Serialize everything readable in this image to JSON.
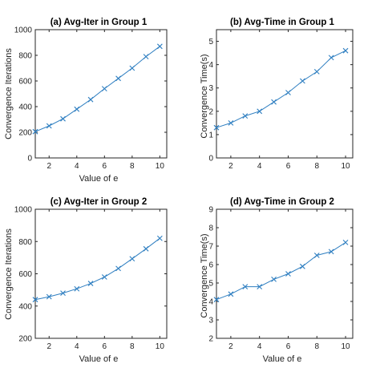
{
  "chart_data": [
    {
      "type": "line",
      "title": "(a) Avg-Iter in Group 1",
      "xlabel": "Value of e",
      "ylabel": "Convergence Iterations",
      "x": [
        1,
        2,
        3,
        4,
        5,
        6,
        7,
        8,
        9,
        10
      ],
      "series": [
        {
          "values": [
            205,
            250,
            305,
            380,
            455,
            540,
            620,
            700,
            790,
            870
          ]
        }
      ],
      "xlim": [
        1,
        10.5
      ],
      "ylim": [
        0,
        1000
      ],
      "xticks": [
        2,
        4,
        6,
        8,
        10
      ],
      "yticks": [
        0,
        200,
        400,
        600,
        800,
        1000
      ],
      "line_color": "#2f7fc1",
      "marker": "x",
      "grid": false
    },
    {
      "type": "line",
      "title": "(b) Avg-Time in Group 1",
      "xlabel": "",
      "ylabel": "Convergence Time(s)",
      "x": [
        1,
        2,
        3,
        4,
        5,
        6,
        7,
        8,
        9,
        10
      ],
      "series": [
        {
          "values": [
            1.3,
            1.5,
            1.8,
            2.0,
            2.4,
            2.8,
            3.3,
            3.7,
            4.3,
            4.6
          ]
        }
      ],
      "xlim": [
        1,
        10.5
      ],
      "ylim": [
        0,
        5.5
      ],
      "xticks": [
        2,
        4,
        6,
        8,
        10
      ],
      "yticks": [
        0,
        1,
        2,
        3,
        4,
        5
      ],
      "line_color": "#2f7fc1",
      "marker": "x",
      "grid": false
    },
    {
      "type": "line",
      "title": "(c) Avg-Iter in Group 2",
      "xlabel": "Value of e",
      "ylabel": "Convergence Iterations",
      "x": [
        1,
        2,
        3,
        4,
        5,
        6,
        7,
        8,
        9,
        10
      ],
      "series": [
        {
          "values": [
            440,
            458,
            480,
            507,
            540,
            580,
            633,
            693,
            755,
            820
          ]
        }
      ],
      "xlim": [
        1,
        10.5
      ],
      "ylim": [
        200,
        1000
      ],
      "xticks": [
        2,
        4,
        6,
        8,
        10
      ],
      "yticks": [
        200,
        400,
        600,
        800,
        1000
      ],
      "line_color": "#2f7fc1",
      "marker": "x",
      "grid": false
    },
    {
      "type": "line",
      "title": "(d) Avg-Time in Group 2",
      "xlabel": "Value of e",
      "ylabel": "Convergence Time(s)",
      "x": [
        1,
        2,
        3,
        4,
        5,
        6,
        7,
        8,
        9,
        10
      ],
      "series": [
        {
          "values": [
            4.1,
            4.4,
            4.8,
            4.8,
            5.2,
            5.5,
            5.9,
            6.5,
            6.7,
            7.2
          ]
        }
      ],
      "xlim": [
        1,
        10.5
      ],
      "ylim": [
        2,
        9
      ],
      "xticks": [
        2,
        4,
        6,
        8,
        10
      ],
      "yticks": [
        2,
        3,
        4,
        5,
        6,
        7,
        8,
        9
      ],
      "line_color": "#2f7fc1",
      "marker": "x",
      "grid": false
    }
  ]
}
